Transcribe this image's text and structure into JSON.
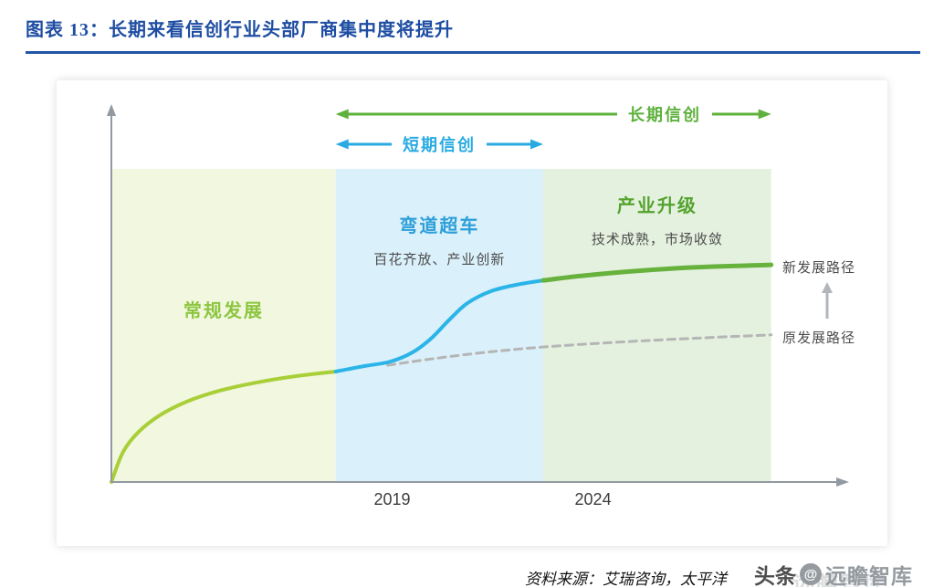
{
  "page": {
    "title": "图表 13：长期来看信创行业头部厂商集中度将提升",
    "title_color": "#1e4da2",
    "source_text": "资料来源：艾瑞咨询，太平洋",
    "watermark": {
      "prefix": "头条",
      "logo_glyph": "@",
      "brand": "远瞻智库"
    }
  },
  "chart_data": {
    "type": "line",
    "title": "长期来看信创行业头部厂商集中度将提升",
    "x_axis": {
      "ticks": [
        {
          "label": "2019",
          "x": 0.383
        },
        {
          "label": "2024",
          "x": 0.657
        }
      ]
    },
    "phases": [
      {
        "label": "常规发展",
        "sublabel": "",
        "x1": 0.0,
        "x2": 0.306,
        "fill": "#f2f7e0",
        "label_color": "#8cc63f"
      },
      {
        "label": "弯道超车",
        "sublabel": "百花齐放、产业创新",
        "x1": 0.306,
        "x2": 0.589,
        "fill": "#daf0fa",
        "label_color": "#2d9fd9"
      },
      {
        "label": "产业升级",
        "sublabel": "技术成熟，市场收敛",
        "x1": 0.589,
        "x2": 0.9,
        "fill": "#e4f1df",
        "label_color": "#54a32e"
      }
    ],
    "period_arrows": [
      {
        "label": "长期信创",
        "x1": 0.306,
        "x2": 0.9,
        "color": "#5eb13c"
      },
      {
        "label": "短期信创",
        "x1": 0.306,
        "x2": 0.589,
        "color": "#29abe2"
      }
    ],
    "series": [
      {
        "name": "新发展路径",
        "label": "新发展路径",
        "segments": [
          {
            "phase": "常规发展",
            "color": "#a9cf38",
            "width": 4,
            "points": [
              [
                0,
                0
              ],
              [
                0.016,
                0.081
              ],
              [
                0.037,
                0.135
              ],
              [
                0.066,
                0.18
              ],
              [
                0.103,
                0.217
              ],
              [
                0.147,
                0.246
              ],
              [
                0.197,
                0.268
              ],
              [
                0.253,
                0.286
              ],
              [
                0.306,
                0.298
              ]
            ]
          },
          {
            "phase": "弯道超车",
            "color": "#2bb4e8",
            "width": 4,
            "points": [
              [
                0.306,
                0.298
              ],
              [
                0.346,
                0.313
              ],
              [
                0.381,
                0.325
              ],
              [
                0.411,
                0.35
              ],
              [
                0.436,
                0.387
              ],
              [
                0.461,
                0.438
              ],
              [
                0.486,
                0.483
              ],
              [
                0.518,
                0.515
              ],
              [
                0.552,
                0.532
              ],
              [
                0.589,
                0.544
              ]
            ]
          },
          {
            "phase": "产业升级",
            "color": "#67b23d",
            "width": 5,
            "points": [
              [
                0.589,
                0.544
              ],
              [
                0.645,
                0.557
              ],
              [
                0.713,
                0.569
              ],
              [
                0.794,
                0.579
              ],
              [
                0.9,
                0.586
              ]
            ]
          }
        ]
      },
      {
        "name": "原发展路径",
        "label": "原发展路径",
        "color": "#b5b5b5",
        "width": 3,
        "dash": [
          8,
          6
        ],
        "points": [
          [
            0.377,
            0.315
          ],
          [
            0.44,
            0.333
          ],
          [
            0.52,
            0.352
          ],
          [
            0.608,
            0.367
          ],
          [
            0.707,
            0.379
          ],
          [
            0.807,
            0.389
          ],
          [
            0.9,
            0.397
          ]
        ]
      }
    ]
  }
}
